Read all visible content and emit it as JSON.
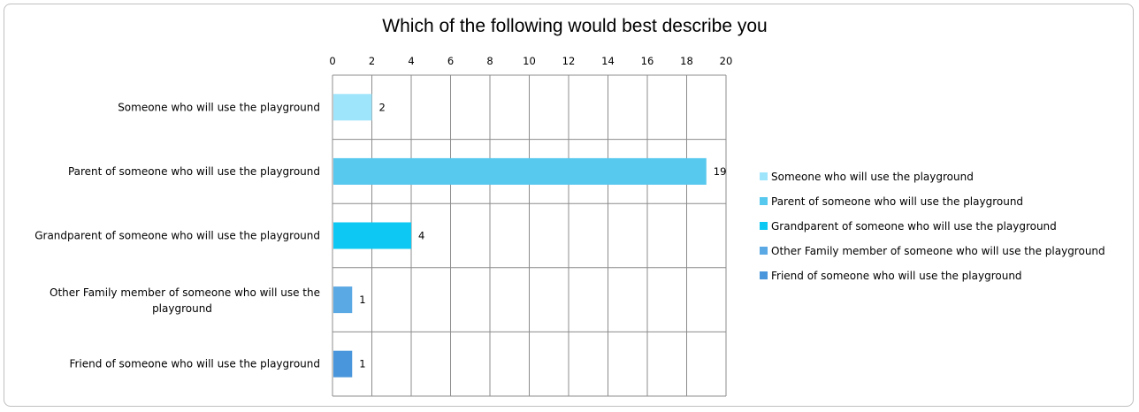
{
  "chart_data": {
    "type": "bar",
    "orientation": "horizontal",
    "title": "Which of the following would best describe you",
    "xlabel": "",
    "ylabel": "",
    "xlim": [
      0,
      20
    ],
    "x_ticks": [
      0,
      2,
      4,
      6,
      8,
      10,
      12,
      14,
      16,
      18,
      20
    ],
    "grid": true,
    "legend_position": "right",
    "categories": [
      {
        "label_lines": [
          "Someone who will use the playground"
        ],
        "legend": "Someone who will use the playground",
        "value": 2,
        "color": "#9ee4fa"
      },
      {
        "label_lines": [
          "Parent of someone who will use the playground"
        ],
        "legend": "Parent of someone who will use the playground",
        "value": 19,
        "color": "#57c8ee"
      },
      {
        "label_lines": [
          "Grandparent of someone who will use the playground"
        ],
        "legend": "Grandparent of someone who will use the playground",
        "value": 4,
        "color": "#0ec8f4"
      },
      {
        "label_lines": [
          "Other Family member of someone who will use the",
          "playground"
        ],
        "legend": "Other Family member of someone who will use the playground",
        "value": 1,
        "color": "#5aa8e4"
      },
      {
        "label_lines": [
          "Friend of someone who will use the playground"
        ],
        "legend": "Friend of someone who will use the playground",
        "value": 1,
        "color": "#4a96dc"
      }
    ]
  }
}
